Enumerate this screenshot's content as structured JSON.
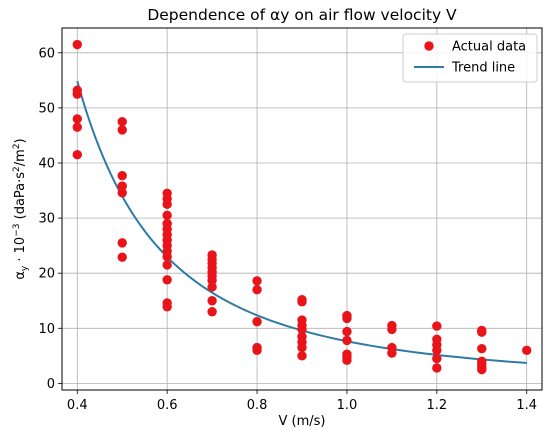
{
  "chart_data": {
    "type": "scatter",
    "title": "Dependence of αy on air flow velocity V",
    "xlabel": "V (m/s)",
    "ylabel": {
      "base": "α",
      "sub": "y",
      "mid": " · 10",
      "exp": "−3",
      "unit_pre": " (daPa·s",
      "unit_sup1": "2",
      "unit_mid": "/m",
      "unit_sup2": "2",
      "unit_post": ")"
    },
    "xlim": [
      0.366,
      1.434
    ],
    "ylim": [
      -1.2,
      64.5
    ],
    "xticks": [
      0.4,
      0.6,
      0.8,
      1.0,
      1.2,
      1.4
    ],
    "xtick_labels": [
      "0.4",
      "0.6",
      "0.8",
      "1.0",
      "1.2",
      "1.4"
    ],
    "yticks": [
      0,
      10,
      20,
      30,
      40,
      50,
      60
    ],
    "ytick_labels": [
      "0",
      "10",
      "20",
      "30",
      "40",
      "50",
      "60"
    ],
    "grid": true,
    "legend_position": "top-right",
    "series": [
      {
        "name": "Actual data",
        "kind": "scatter",
        "color": "#e8141a",
        "points": [
          [
            0.4,
            61.5
          ],
          [
            0.4,
            53.2
          ],
          [
            0.4,
            52.5
          ],
          [
            0.4,
            48.0
          ],
          [
            0.4,
            46.5
          ],
          [
            0.4,
            41.5
          ],
          [
            0.5,
            47.5
          ],
          [
            0.5,
            46.0
          ],
          [
            0.5,
            37.7
          ],
          [
            0.5,
            35.8
          ],
          [
            0.5,
            34.6
          ],
          [
            0.5,
            25.5
          ],
          [
            0.5,
            22.9
          ],
          [
            0.6,
            34.5
          ],
          [
            0.6,
            33.5
          ],
          [
            0.6,
            32.5
          ],
          [
            0.6,
            30.5
          ],
          [
            0.6,
            29.0
          ],
          [
            0.6,
            28.0
          ],
          [
            0.6,
            27.0
          ],
          [
            0.6,
            26.0
          ],
          [
            0.6,
            25.0
          ],
          [
            0.6,
            24.0
          ],
          [
            0.6,
            23.0
          ],
          [
            0.6,
            21.5
          ],
          [
            0.6,
            18.8
          ],
          [
            0.6,
            14.6
          ],
          [
            0.6,
            13.9
          ],
          [
            0.7,
            23.3
          ],
          [
            0.7,
            22.5
          ],
          [
            0.7,
            21.8
          ],
          [
            0.7,
            21.0
          ],
          [
            0.7,
            20.2
          ],
          [
            0.7,
            19.5
          ],
          [
            0.7,
            18.7
          ],
          [
            0.7,
            17.5
          ],
          [
            0.7,
            15.0
          ],
          [
            0.7,
            13.0
          ],
          [
            0.8,
            18.6
          ],
          [
            0.8,
            17.0
          ],
          [
            0.8,
            11.2
          ],
          [
            0.8,
            6.5
          ],
          [
            0.8,
            6.0
          ],
          [
            0.9,
            15.2
          ],
          [
            0.9,
            14.8
          ],
          [
            0.9,
            11.5
          ],
          [
            0.9,
            10.5
          ],
          [
            0.9,
            9.8
          ],
          [
            0.9,
            8.5
          ],
          [
            0.9,
            7.5
          ],
          [
            0.9,
            6.5
          ],
          [
            0.9,
            5.0
          ],
          [
            1.0,
            12.3
          ],
          [
            1.0,
            11.8
          ],
          [
            1.0,
            9.4
          ],
          [
            1.0,
            7.8
          ],
          [
            1.0,
            5.3
          ],
          [
            1.0,
            4.8
          ],
          [
            1.0,
            4.2
          ],
          [
            1.1,
            10.5
          ],
          [
            1.1,
            9.8
          ],
          [
            1.1,
            6.5
          ],
          [
            1.1,
            5.5
          ],
          [
            1.2,
            10.4
          ],
          [
            1.2,
            8.0
          ],
          [
            1.2,
            7.0
          ],
          [
            1.2,
            6.0
          ],
          [
            1.2,
            4.5
          ],
          [
            1.2,
            2.8
          ],
          [
            1.3,
            9.6
          ],
          [
            1.3,
            9.3
          ],
          [
            1.3,
            6.3
          ],
          [
            1.3,
            4.0
          ],
          [
            1.3,
            3.5
          ],
          [
            1.3,
            3.0
          ],
          [
            1.3,
            2.5
          ],
          [
            1.4,
            6.0
          ]
        ]
      },
      {
        "name": "Trend line",
        "kind": "line",
        "color": "#2d7ba6",
        "formula": "a * V^b",
        "a": 7.65,
        "b": -2.15,
        "x_range": [
          0.4,
          1.4
        ]
      }
    ]
  }
}
